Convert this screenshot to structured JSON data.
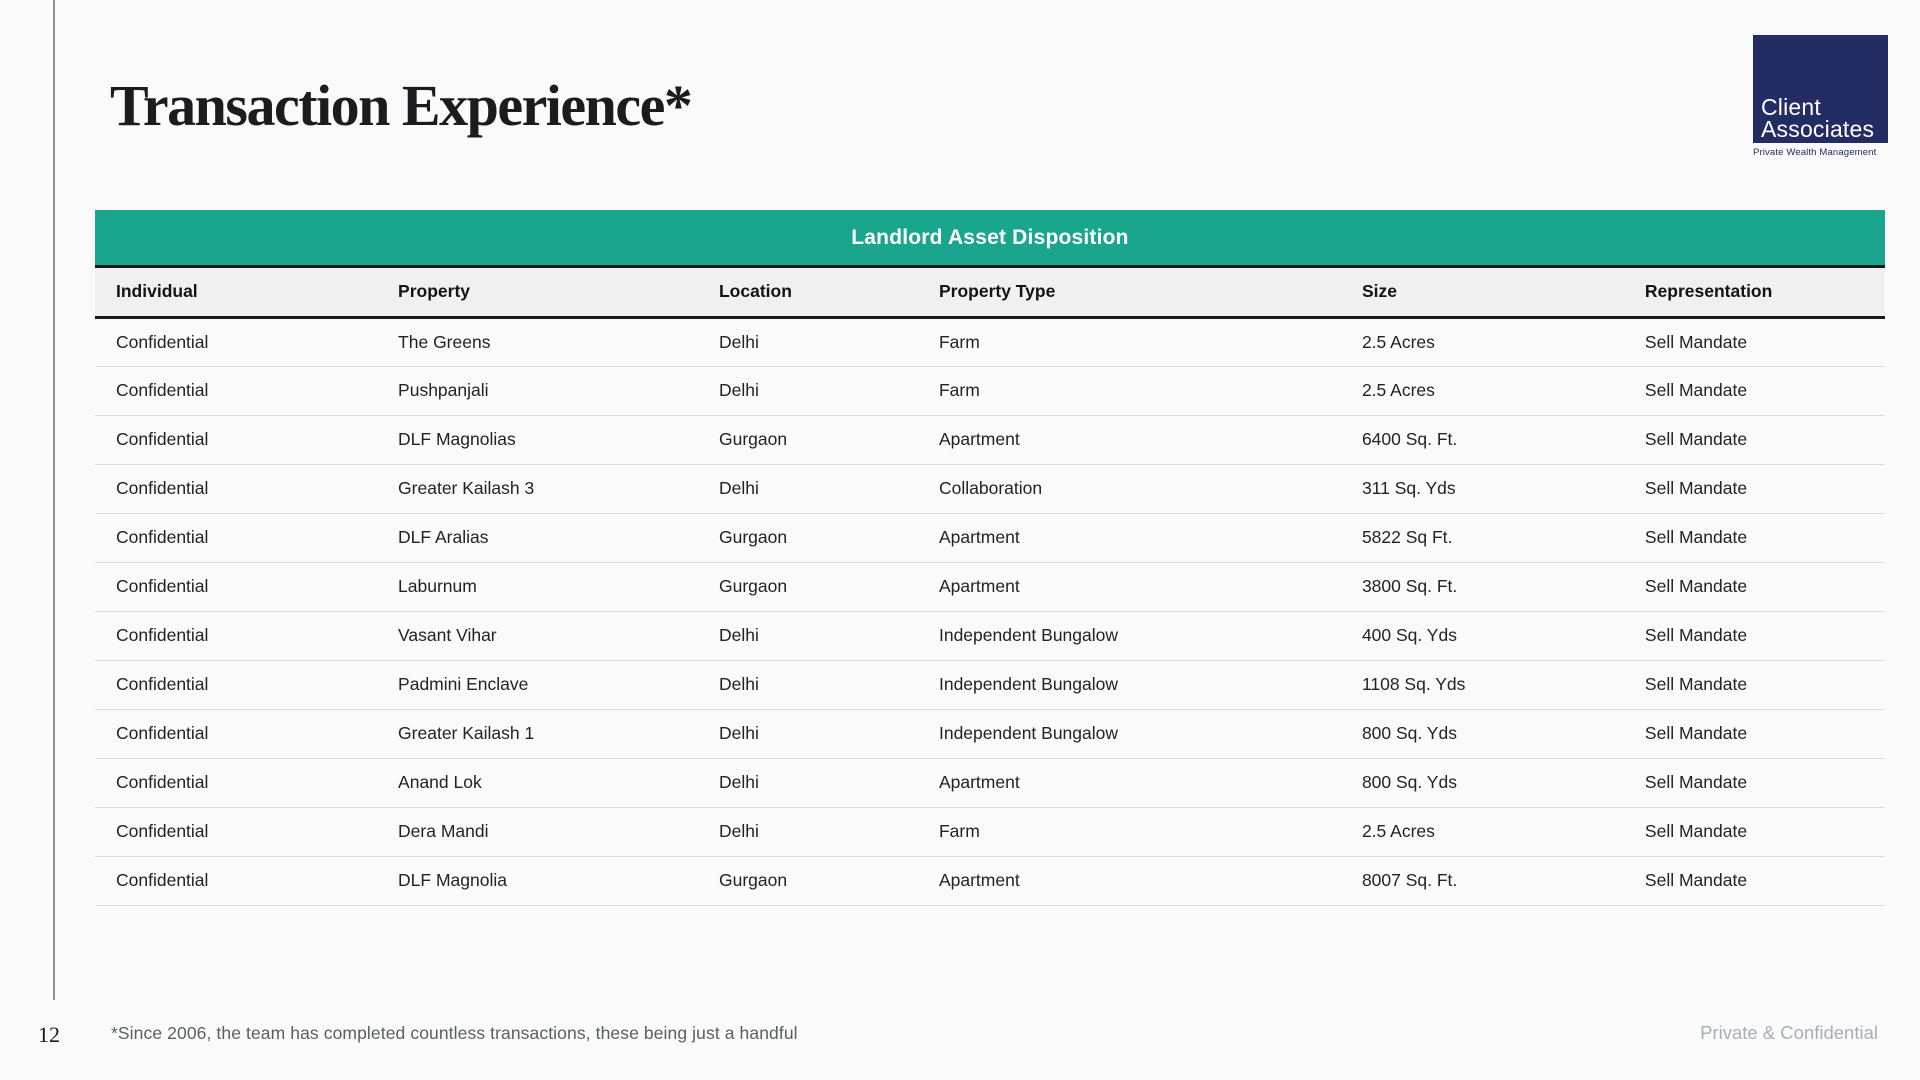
{
  "slide": {
    "title": "Transaction Experience*",
    "page_number": "12",
    "footnote": "*Since 2006, the team has completed countless transactions, these being just a handful",
    "confidentiality": "Private & Confidential"
  },
  "logo": {
    "line1": "Client",
    "line2": "Associates",
    "tagline": "Private Wealth Management"
  },
  "table": {
    "caption": "Landlord Asset Disposition",
    "columns": [
      "Individual",
      "Property",
      "Location",
      "Property Type",
      "Size",
      "Representation"
    ],
    "rows": [
      [
        "Confidential",
        "The Greens",
        "Delhi",
        "Farm",
        "2.5 Acres",
        "Sell Mandate"
      ],
      [
        "Confidential",
        "Pushpanjali",
        "Delhi",
        "Farm",
        "2.5 Acres",
        "Sell Mandate"
      ],
      [
        "Confidential",
        "DLF Magnolias",
        "Gurgaon",
        "Apartment",
        "6400 Sq. Ft.",
        "Sell Mandate"
      ],
      [
        "Confidential",
        "Greater Kailash 3",
        "Delhi",
        "Collaboration",
        "311 Sq. Yds",
        "Sell Mandate"
      ],
      [
        "Confidential",
        "DLF Aralias",
        "Gurgaon",
        "Apartment",
        "5822 Sq Ft.",
        "Sell Mandate"
      ],
      [
        "Confidential",
        "Laburnum",
        "Gurgaon",
        "Apartment",
        "3800 Sq. Ft.",
        "Sell Mandate"
      ],
      [
        "Confidential",
        "Vasant Vihar",
        "Delhi",
        "Independent Bungalow",
        "400 Sq. Yds",
        "Sell Mandate"
      ],
      [
        "Confidential",
        "Padmini Enclave",
        "Delhi",
        "Independent Bungalow",
        "1108 Sq. Yds",
        "Sell Mandate"
      ],
      [
        "Confidential",
        "Greater Kailash 1",
        "Delhi",
        "Independent Bungalow",
        "800 Sq. Yds",
        "Sell Mandate"
      ],
      [
        "Confidential",
        "Anand Lok",
        "Delhi",
        "Apartment",
        "800 Sq. Yds",
        "Sell Mandate"
      ],
      [
        "Confidential",
        "Dera Mandi",
        "Delhi",
        "Farm",
        "2.5 Acres",
        "Sell Mandate"
      ],
      [
        "Confidential",
        "DLF Magnolia",
        "Gurgaon",
        "Apartment",
        "8007 Sq. Ft.",
        "Sell Mandate"
      ]
    ]
  },
  "colors": {
    "accent_teal": "#1AA68E",
    "logo_navy": "#242D63",
    "background": "#FAFAFA",
    "dark_border": "#1A1A1A",
    "row_divider": "#DBDBDB"
  }
}
